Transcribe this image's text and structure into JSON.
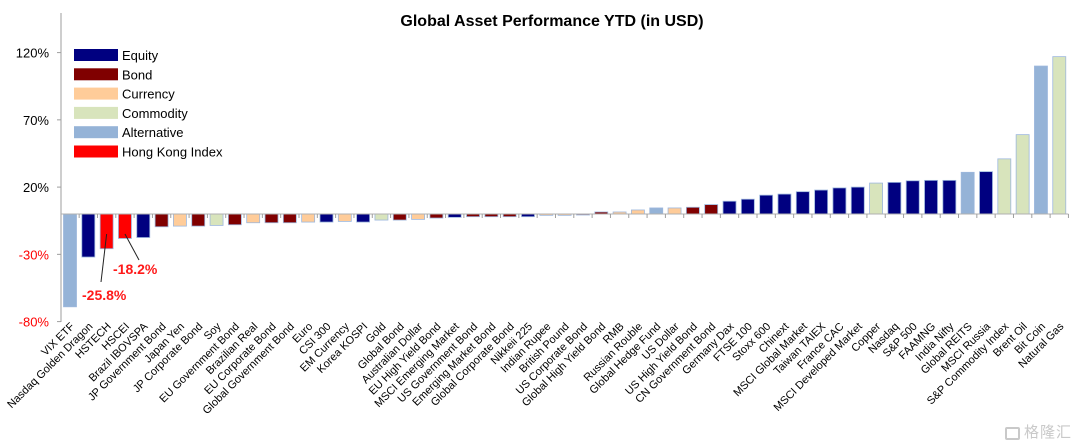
{
  "chart_data": {
    "type": "bar",
    "title": "Global Asset Performance YTD (in USD)",
    "xlabel": "",
    "ylabel": "",
    "ylim": [
      -80,
      150
    ],
    "yticks": [
      120,
      70,
      20,
      -30,
      -80
    ],
    "ytick_labels": [
      "120%",
      "70%",
      "20%",
      "-30%",
      "-80%"
    ],
    "grid": false,
    "legend_position": "top-left",
    "colors": {
      "Equity": "#000080",
      "Bond": "#800000",
      "Currency": "#ffcc99",
      "Commodity": "#d8e4bc",
      "Alternative": "#95b3d7",
      "Hong Kong Index": "#ff0000"
    },
    "negative_tick_color": "#ff0000",
    "legend": [
      "Equity",
      "Bond",
      "Currency",
      "Commodity",
      "Alternative",
      "Hong Kong Index"
    ],
    "categories": [
      "VIX ETF",
      "Nasdaq Golden Dragon",
      "HSTECH",
      "HSCEI",
      "Brazil IBOVSPA",
      "JP Government Bond",
      "Japan Yen",
      "JP Corporate Bond",
      "Soy",
      "EU Government Bond",
      "Brazilian Real",
      "EU Corporate Bond",
      "Global Government Bond",
      "Euro",
      "CSI 300",
      "EM Currency",
      "Korea KOSPI",
      "Gold",
      "Global Bond",
      "Australian Dollar",
      "EU High Yield Bond",
      "MSCI Emerging Market",
      "US Government Bond",
      "Emerging Market Bond",
      "Global Corporate Bond",
      "Nikkeii 225",
      "Indian Rupee",
      "British Pound",
      "US Corporate Bond",
      "Global High Yield Bond",
      "RMB",
      "Russian Rouble",
      "Global Hedge Fund",
      "US Dollar",
      "US High Yield Bond",
      "CN Government Bond",
      "Germany Dax",
      "FTSE 100",
      "Stoxx 600",
      "Chinext",
      "MSCI Global Market",
      "Taiwan TAIEX",
      "France CAC",
      "MSCI Developed Market",
      "Copper",
      "Nasdaq",
      "S&P 500",
      "FAAMNG",
      "India Nifty",
      "Global REITS",
      "MSCI Russia",
      "S&P Commodity Index",
      "Brent Oil",
      "Bit Coin",
      "Natural Gas"
    ],
    "asset_class": [
      "Alternative",
      "Equity",
      "Hong Kong Index",
      "Hong Kong Index",
      "Equity",
      "Bond",
      "Currency",
      "Bond",
      "Commodity",
      "Bond",
      "Currency",
      "Bond",
      "Bond",
      "Currency",
      "Equity",
      "Currency",
      "Equity",
      "Commodity",
      "Bond",
      "Currency",
      "Bond",
      "Equity",
      "Bond",
      "Bond",
      "Bond",
      "Equity",
      "Currency",
      "Currency",
      "Bond",
      "Bond",
      "Currency",
      "Currency",
      "Alternative",
      "Currency",
      "Bond",
      "Bond",
      "Equity",
      "Equity",
      "Equity",
      "Equity",
      "Equity",
      "Equity",
      "Equity",
      "Equity",
      "Commodity",
      "Equity",
      "Equity",
      "Equity",
      "Equity",
      "Alternative",
      "Equity",
      "Commodity",
      "Commodity",
      "Alternative",
      "Commodity"
    ],
    "values": [
      -69,
      -32,
      -25.8,
      -18.2,
      -17.5,
      -9.5,
      -9,
      -9,
      -8.5,
      -8,
      -6.5,
      -6.5,
      -6.5,
      -6,
      -6,
      -5.5,
      -6,
      -4.5,
      -4.5,
      -4,
      -3,
      -2.5,
      -2,
      -2,
      -2,
      -2,
      -1,
      -1,
      -0.3,
      1.5,
      1.5,
      3,
      4.5,
      4.5,
      5,
      7,
      9.5,
      11,
      14,
      14.8,
      16.6,
      17.8,
      19.4,
      20,
      23,
      23.5,
      24.7,
      25,
      25,
      31,
      31.5,
      41,
      59,
      110,
      117
    ],
    "annotations": [
      {
        "category": "HSTECH",
        "text": "-25.8%"
      },
      {
        "category": "HSCEI",
        "text": "-18.2%"
      }
    ]
  },
  "watermark": {
    "text": "格隆汇"
  }
}
